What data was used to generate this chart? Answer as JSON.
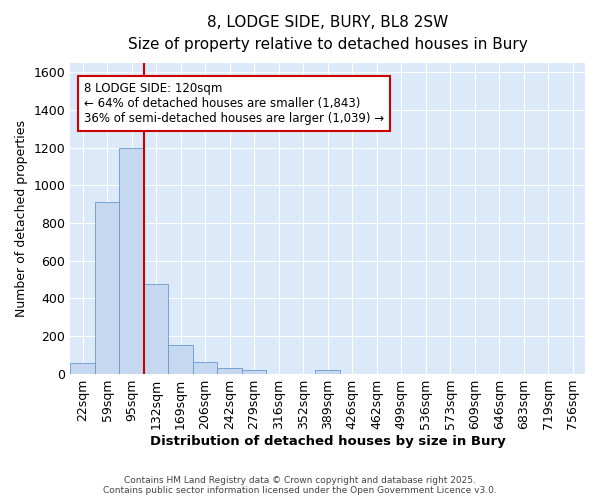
{
  "title": "8, LODGE SIDE, BURY, BL8 2SW",
  "subtitle": "Size of property relative to detached houses in Bury",
  "xlabel": "Distribution of detached houses by size in Bury",
  "ylabel": "Number of detached properties",
  "bar_color": "#c5d8f0",
  "bar_edge_color": "#6699cc",
  "background_color": "#dce9f8",
  "categories": [
    "22sqm",
    "59sqm",
    "95sqm",
    "132sqm",
    "169sqm",
    "206sqm",
    "242sqm",
    "279sqm",
    "316sqm",
    "352sqm",
    "389sqm",
    "426sqm",
    "462sqm",
    "499sqm",
    "536sqm",
    "573sqm",
    "609sqm",
    "646sqm",
    "683sqm",
    "719sqm",
    "756sqm"
  ],
  "values": [
    55,
    910,
    1200,
    475,
    150,
    60,
    30,
    20,
    0,
    0,
    20,
    0,
    0,
    0,
    0,
    0,
    0,
    0,
    0,
    0,
    0
  ],
  "ylim": [
    0,
    1650
  ],
  "yticks": [
    0,
    200,
    400,
    600,
    800,
    1000,
    1200,
    1400,
    1600
  ],
  "vline_x": 2.5,
  "vline_color": "#cc0000",
  "annotation_text": "8 LODGE SIDE: 120sqm\n← 64% of detached houses are smaller (1,843)\n36% of semi-detached houses are larger (1,039) →",
  "annotation_box_color": "#ffffff",
  "annotation_box_edge_color": "#cc0000",
  "footer1": "Contains HM Land Registry data © Crown copyright and database right 2025.",
  "footer2": "Contains public sector information licensed under the Open Government Licence v3.0."
}
